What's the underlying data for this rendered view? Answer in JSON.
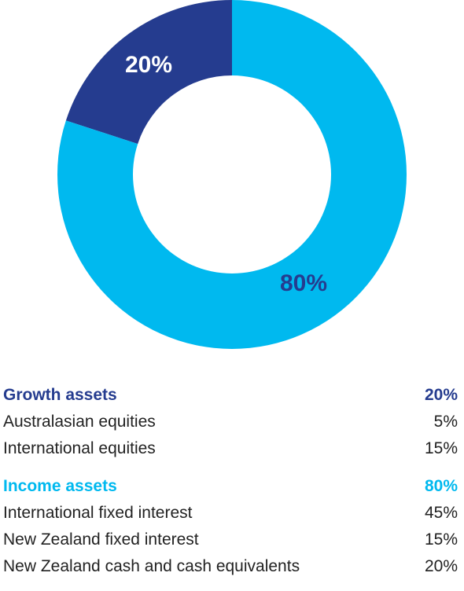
{
  "colors": {
    "growth": "#253c8f",
    "income": "#00b9ef",
    "text": "#222222"
  },
  "chart_data": {
    "type": "pie",
    "variant": "donut",
    "slices": [
      {
        "label": "Growth assets",
        "value": 20,
        "display": "20%",
        "color": "#253c8f",
        "label_color": "#ffffff"
      },
      {
        "label": "Income assets",
        "value": 80,
        "display": "80%",
        "color": "#00b9ef",
        "label_color": "#253c8f"
      }
    ]
  },
  "legend": {
    "groups": [
      {
        "name": "Growth assets",
        "total": "20%",
        "color": "#253c8f",
        "items": [
          {
            "label": "Australasian equities",
            "value": "5%"
          },
          {
            "label": "International equities",
            "value": "15%"
          }
        ]
      },
      {
        "name": "Income assets",
        "total": "80%",
        "color": "#00b9ef",
        "items": [
          {
            "label": "International fixed interest",
            "value": "45%"
          },
          {
            "label": "New Zealand fixed interest",
            "value": "15%"
          },
          {
            "label": "New Zealand cash and cash equivalents",
            "value": "20%"
          }
        ]
      }
    ]
  }
}
